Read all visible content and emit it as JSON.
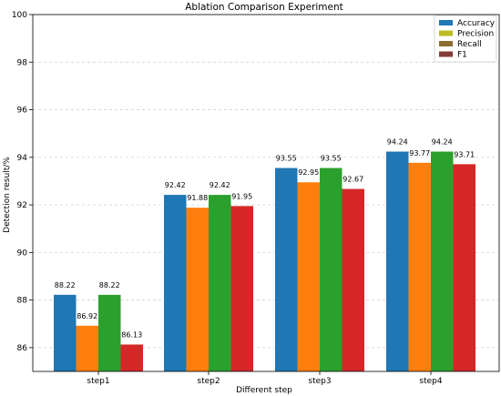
{
  "chart_data": {
    "type": "bar",
    "title": "Ablation Comparison Experiment",
    "xlabel": "Different step",
    "ylabel": "Detection result/%",
    "categories": [
      "step1",
      "step2",
      "step3",
      "step4"
    ],
    "ylim": [
      85,
      100
    ],
    "yticks": [
      86,
      88,
      90,
      92,
      94,
      96,
      98,
      100
    ],
    "grid": "y-dashed",
    "legend_position": "top-right",
    "series": [
      {
        "name": "Accuracy",
        "color": "#1f77b4",
        "values": [
          88.22,
          92.42,
          93.55,
          94.24
        ],
        "labels": [
          "88.22",
          "92.42",
          "93.55",
          "94.24"
        ]
      },
      {
        "name": "Precision",
        "color": "#ff7f0e",
        "legend_color": "#bcbd22",
        "values": [
          86.92,
          91.88,
          92.95,
          93.77
        ],
        "labels": [
          "86.92",
          "91.88",
          "92.95",
          "93.77"
        ]
      },
      {
        "name": "Recall",
        "color": "#2ca02c",
        "legend_color": "#8c6d31",
        "values": [
          88.22,
          92.42,
          93.55,
          94.24
        ],
        "labels": [
          "88.22",
          "92.42",
          "93.55",
          "94.24"
        ]
      },
      {
        "name": "F1",
        "color": "#d62728",
        "legend_color": "#843c39",
        "values": [
          86.13,
          91.95,
          92.67,
          93.71
        ],
        "labels": [
          "86.13",
          "91.95",
          "92.67",
          "93.71"
        ]
      }
    ]
  }
}
